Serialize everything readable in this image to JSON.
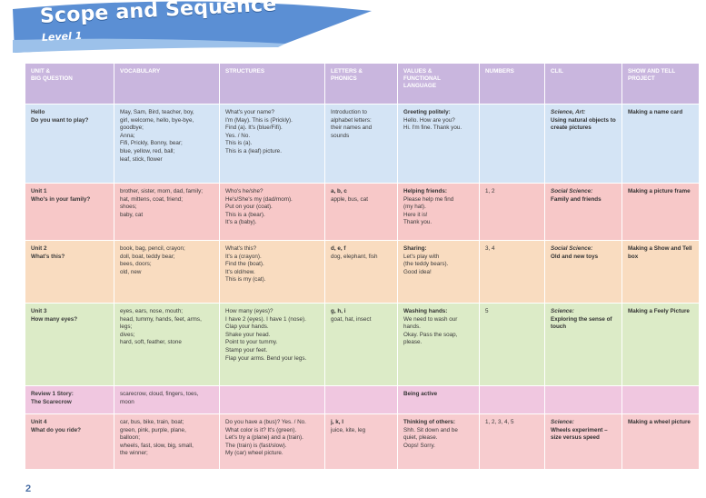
{
  "header": {
    "title": "Scope and Sequence",
    "level": "Level 1"
  },
  "columns": [
    "UNIT &\nBIG QUESTION",
    "VOCABULARY",
    "STRUCTURES",
    "LETTERS &\nPHONICS",
    "VALUES &\nFUNCTIONAL\nLANGUAGE",
    "NUMBERS",
    "CLIL",
    "SHOW AND TELL\nPROJECT"
  ],
  "rows": [
    {
      "unit": "Hello",
      "question": "Do you want to play?",
      "vocab": [
        "May, Sam, Bird, teacher, boy,",
        "girl, welcome, hello, bye-bye,",
        "goodbye;",
        "Anna;",
        "Fifi, Prickly, Bonny, bear;",
        "blue, yellow, red, ball;",
        "leaf, stick, flower"
      ],
      "structures": [
        "What's your name?",
        "I'm (May). This is (Prickly).",
        "Find (a). It's (blue/Fifi).",
        "Yes. / No.",
        "This is (a).",
        "This is a (leaf) picture."
      ],
      "letters_title": "",
      "letters": [
        "Introduction to",
        "alphabet letters:",
        "their names and",
        "sounds"
      ],
      "values_title": "Greeting politely:",
      "values": [
        "Hello. How are you?",
        "Hi. I'm fine. Thank you."
      ],
      "numbers": "",
      "clil_subject": "Science, Art:",
      "clil_topic": "Using natural objects to create pictures",
      "project": "Making a name card"
    },
    {
      "unit": "Unit 1",
      "question": "Who's in your family?",
      "vocab": [
        "brother, sister, mom, dad, family;",
        "hat, mittens, coat, friend;",
        "shoes;",
        "baby, cat"
      ],
      "structures": [
        "Who's he/she?",
        "He's/She's my (dad/mom).",
        "Put on your (coat).",
        "This is a (bear).",
        "It's a (baby)."
      ],
      "letters_title": "a, b, c",
      "letters": [
        "apple, bus, cat"
      ],
      "values_title": "Helping friends:",
      "values": [
        "Please help me find",
        "(my hat).",
        "Here it is!",
        "Thank you."
      ],
      "numbers": "1, 2",
      "clil_subject": "Social Science:",
      "clil_topic": "Family and friends",
      "project": "Making a picture frame"
    },
    {
      "unit": "Unit 2",
      "question": "What's this?",
      "vocab": [
        "book, bag, pencil, crayon;",
        "doll, boat, teddy bear;",
        "bees, doors;",
        "old, new"
      ],
      "structures": [
        "What's this?",
        "It's a (crayon).",
        "Find the (boat).",
        "It's old/new.",
        "This is my (cat)."
      ],
      "letters_title": "d, e, f",
      "letters": [
        "dog, elephant, fish"
      ],
      "values_title": "Sharing:",
      "values": [
        "Let's play with",
        "(the teddy bears).",
        "Good idea!"
      ],
      "numbers": "3, 4",
      "clil_subject": "Social Science:",
      "clil_topic": "Old and new toys",
      "project": "Making a Show and Tell box"
    },
    {
      "unit": "Unit 3",
      "question": "How many eyes?",
      "vocab": [
        "eyes, ears, nose, mouth;",
        "head, tummy, hands, feet, arms,",
        "legs;",
        "dives;",
        "hard, soft, feather, stone"
      ],
      "structures": [
        "How many (eyes)?",
        "I have 2 (eyes). I have 1 (nose).",
        "Clap your hands.",
        "Shake your head.",
        "Point to your tummy.",
        "Stamp your feet.",
        "Flap your arms. Bend your legs."
      ],
      "letters_title": "g, h, i",
      "letters": [
        "goat, hat, insect"
      ],
      "values_title": "Washing hands:",
      "values": [
        "We need to wash our",
        "hands.",
        "Okay. Pass the soap,",
        "please."
      ],
      "numbers": "5",
      "clil_subject": "Science:",
      "clil_topic": "Exploring the sense of touch",
      "project": "Making a Feely Picture"
    },
    {
      "unit": "Review 1 Story:",
      "question": "The Scarecrow",
      "vocab": [
        "scarecrow, cloud, fingers, toes,",
        "moon"
      ],
      "structures": [],
      "letters_title": "",
      "letters": [],
      "values_title": "Being active",
      "values": [],
      "numbers": "",
      "clil_subject": "",
      "clil_topic": "",
      "project": ""
    },
    {
      "unit": "Unit 4",
      "question": "What do you ride?",
      "vocab": [
        "car, bus, bike, train, boat;",
        "green, pink, purple, plane,",
        "balloon;",
        "wheels, fast, slow, big, small,",
        "the winner;"
      ],
      "structures": [
        "Do you have a (bus)? Yes. / No.",
        "What color is it? It's (green).",
        "Let's try a (plane) and a (train).",
        "The (train) is (fast/slow).",
        "My (car) wheel picture."
      ],
      "letters_title": "j, k, l",
      "letters": [
        "juice, kite, leg"
      ],
      "values_title": "Thinking of others:",
      "values": [
        "Shh. Sit down and be",
        "quiet, please.",
        "Oops! Sorry."
      ],
      "numbers": "1, 2, 3, 4, 5",
      "clil_subject": "Science:",
      "clil_topic": "Wheels experiment – size versus speed",
      "project": "Making a wheel picture"
    }
  ],
  "footer": {
    "page_number": "2"
  },
  "colors": {
    "header": "#c9b6de",
    "banner": "#5b8fd4",
    "hello": "#d4e4f5",
    "unit1": "#f7c8c8",
    "unit2": "#f9dcc0",
    "unit3": "#dcebc7",
    "review": "#f0c7e0",
    "unit4": "#f7cccf"
  }
}
